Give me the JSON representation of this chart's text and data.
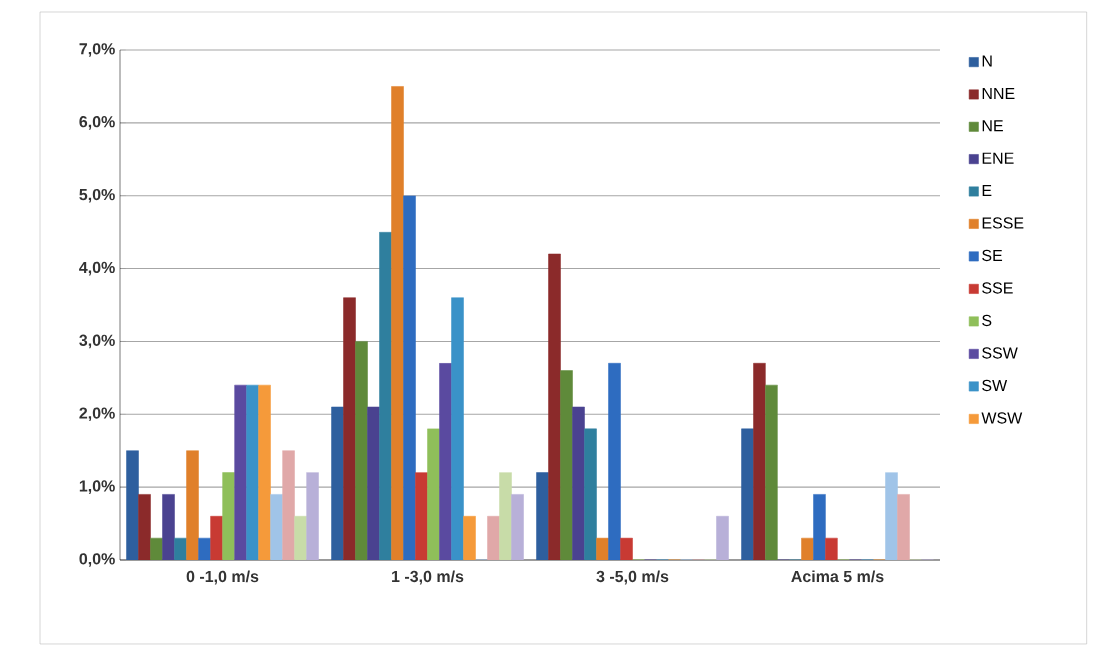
{
  "chart_data": {
    "type": "bar",
    "categories": [
      "0  -1,0 m/s",
      "1  -3,0 m/s",
      "3  -5,0 m/s",
      "Acima 5 m/s"
    ],
    "series": [
      {
        "name": "N",
        "color": "#2e5f9e",
        "values": [
          1.5,
          2.1,
          1.2,
          1.8
        ]
      },
      {
        "name": "NNE",
        "color": "#8b2a2a",
        "values": [
          0.9,
          3.6,
          4.2,
          2.7
        ]
      },
      {
        "name": "NE",
        "color": "#5f8a3a",
        "values": [
          0.3,
          3.0,
          2.6,
          2.4
        ]
      },
      {
        "name": "ENE",
        "color": "#4a4290",
        "values": [
          0.9,
          2.1,
          2.1,
          0
        ]
      },
      {
        "name": "E",
        "color": "#2f7f9e",
        "values": [
          0.3,
          4.5,
          1.8,
          0
        ]
      },
      {
        "name": "ESSE",
        "color": "#e0802a",
        "values": [
          1.5,
          6.5,
          0.3,
          0.3
        ]
      },
      {
        "name": "SE",
        "color": "#2e6cc0",
        "values": [
          0.3,
          5.0,
          2.7,
          0.9
        ]
      },
      {
        "name": "SSE",
        "color": "#c83a33",
        "values": [
          0.6,
          1.2,
          0.3,
          0.3
        ]
      },
      {
        "name": "S",
        "color": "#8fbf5a",
        "values": [
          1.2,
          1.8,
          0,
          0
        ]
      },
      {
        "name": "SSW",
        "color": "#5a4aa0",
        "values": [
          2.4,
          2.7,
          0,
          0
        ]
      },
      {
        "name": "SW",
        "color": "#3a92c8",
        "values": [
          2.4,
          3.6,
          0,
          0
        ]
      },
      {
        "name": "WSW",
        "color": "#f59a3a",
        "values": [
          2.4,
          0.6,
          0,
          0
        ]
      },
      {
        "color": "#a0c4e8",
        "values": [
          0.9,
          0,
          0,
          1.2
        ]
      },
      {
        "color": "#e0a8a8",
        "values": [
          1.5,
          0.6,
          0,
          0.9
        ]
      },
      {
        "color": "#c8dca8",
        "values": [
          0.6,
          1.2,
          0,
          0
        ]
      },
      {
        "color": "#b8b0d8",
        "values": [
          1.2,
          0.9,
          0.6,
          0
        ]
      }
    ],
    "ylim": [
      0,
      7
    ],
    "yticks": [
      {
        "value": 0,
        "label": "0,0%"
      },
      {
        "value": 1,
        "label": "1,0%"
      },
      {
        "value": 2,
        "label": "2,0%"
      },
      {
        "value": 3,
        "label": "3,0%"
      },
      {
        "value": 4,
        "label": "4,0%"
      },
      {
        "value": 5,
        "label": "5,0%"
      },
      {
        "value": 6,
        "label": "6,0%"
      },
      {
        "value": 7,
        "label": "7,0%"
      }
    ],
    "grid": "y",
    "legend": "right"
  }
}
